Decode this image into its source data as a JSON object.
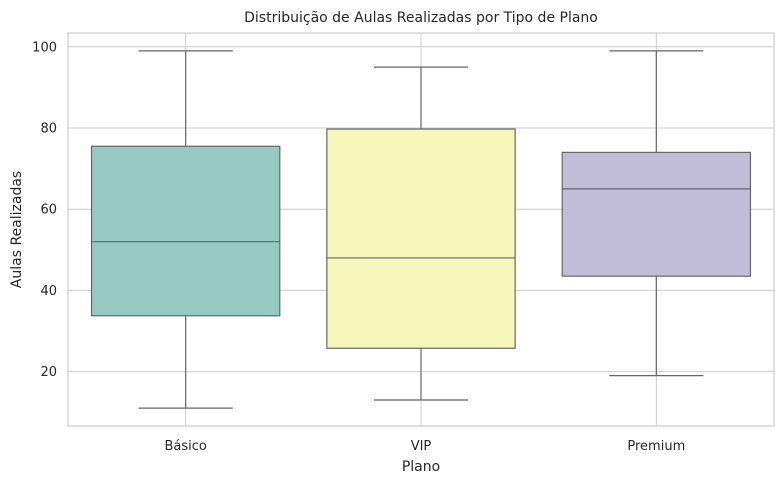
{
  "chart_data": {
    "type": "box",
    "title": "Distribuição de Aulas Realizadas por Tipo de Plano",
    "xlabel": "Plano",
    "ylabel": "Aulas Realizadas",
    "categories": [
      "Básico",
      "VIP",
      "Premium"
    ],
    "colors": [
      "#96c9c1",
      "#f6f6bb",
      "#c1bdd8"
    ],
    "boxes": [
      {
        "category": "Básico",
        "whislo": 11,
        "q1": 33.75,
        "median": 52,
        "q3": 75.5,
        "whishi": 99
      },
      {
        "category": "VIP",
        "whislo": 13,
        "q1": 25.75,
        "median": 48,
        "q3": 79.75,
        "whishi": 95
      },
      {
        "category": "Premium",
        "whislo": 19,
        "q1": 43.5,
        "median": 65,
        "q3": 74,
        "whishi": 99
      }
    ],
    "ylim": [
      6.6,
      103.4
    ],
    "yticks": [
      20,
      40,
      60,
      80,
      100
    ],
    "ytick_labels": [
      "20",
      "40",
      "60",
      "80",
      "100"
    ],
    "grid": true,
    "line_color": "#666666",
    "grid_color": "#cccccc"
  }
}
